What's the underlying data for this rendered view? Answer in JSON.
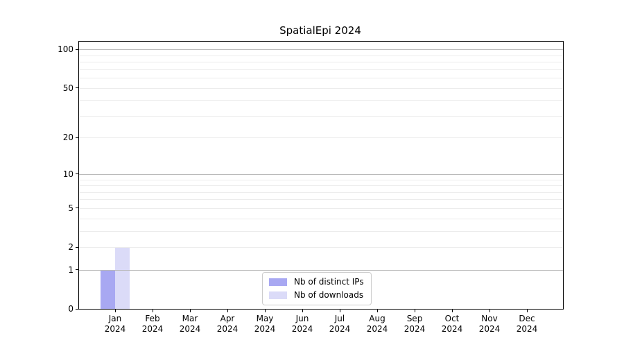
{
  "figure": {
    "background": "#ffffff"
  },
  "chart_data": {
    "type": "bar",
    "title": "SpatialEpi 2024",
    "x_months": [
      "Jan",
      "Feb",
      "Mar",
      "Apr",
      "May",
      "Jun",
      "Jul",
      "Aug",
      "Sep",
      "Oct",
      "Nov",
      "Dec"
    ],
    "x_year": "2024",
    "series": [
      {
        "name": "Nb of distinct IPs",
        "color": "#a8a8f2",
        "values": [
          1,
          0,
          0,
          0,
          0,
          0,
          0,
          0,
          0,
          0,
          0,
          0
        ]
      },
      {
        "name": "Nb of downloads",
        "color": "#dbdbf8",
        "values": [
          2,
          0,
          0,
          0,
          0,
          0,
          0,
          0,
          0,
          0,
          0,
          0
        ]
      }
    ],
    "yscale": "log1p",
    "ylim": [
      0,
      115
    ],
    "y_ticks": [
      0,
      1,
      2,
      5,
      10,
      20,
      50,
      100
    ],
    "y_major_gridlines": [
      1,
      10,
      100
    ],
    "y_minor_gridlines": [
      2,
      3,
      4,
      5,
      6,
      7,
      8,
      9,
      20,
      30,
      40,
      50,
      60,
      70,
      80,
      90
    ],
    "grid": true,
    "legend": {
      "position": "lower center",
      "entries": [
        "Nb of distinct IPs",
        "Nb of downloads"
      ]
    }
  },
  "colors": {
    "major_grid": "#b9b9b9",
    "minor_grid": "#ececec",
    "spine": "#000000",
    "tick_label": "#000000"
  }
}
